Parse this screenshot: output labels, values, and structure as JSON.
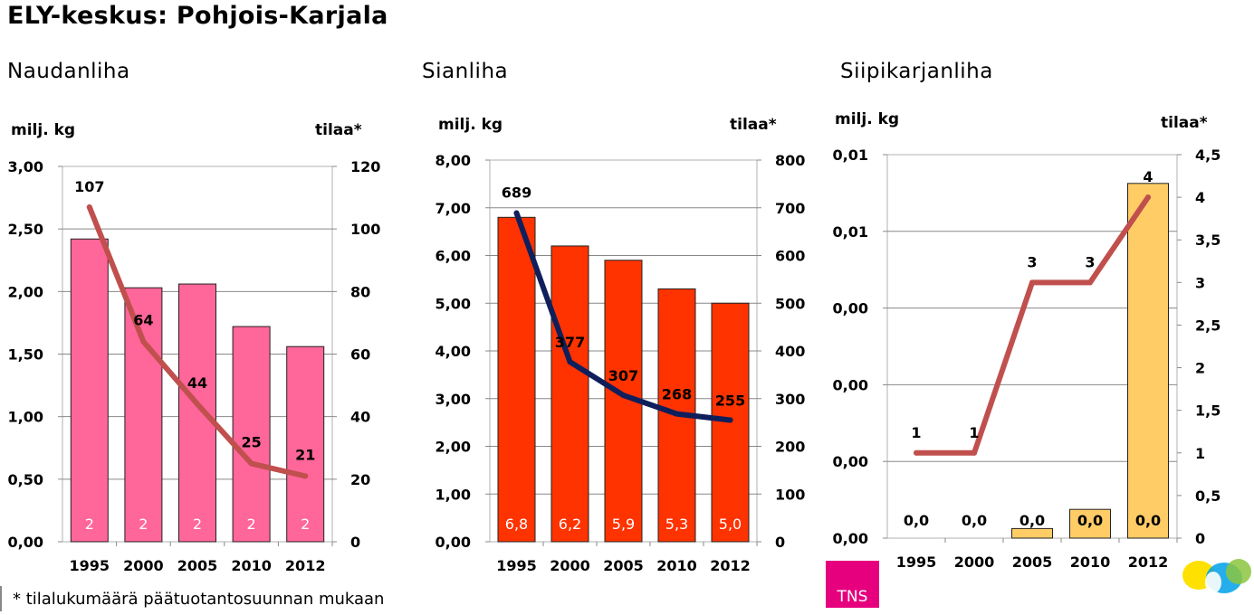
{
  "title": "ELY-keskus: Pohjois-Karjala",
  "footnote": "* tilalukumäärä päätuotantosuunnan mukaan",
  "tns_logo": "TNS",
  "chart_data": [
    {
      "type": "bar",
      "title": "Naudanliha",
      "ylabel": "milj. kg",
      "y2label": "tilaa*",
      "categories": [
        "1995",
        "2000",
        "2005",
        "2010",
        "2012"
      ],
      "ylim": [
        0,
        3
      ],
      "yticks": [
        "0,00",
        "0,50",
        "1,00",
        "1,50",
        "2,00",
        "2,50",
        "3,00"
      ],
      "y2lim": [
        0,
        120
      ],
      "y2ticks": [
        "0",
        "20",
        "40",
        "60",
        "80",
        "100",
        "120"
      ],
      "bar_values": [
        2.42,
        2.03,
        2.06,
        1.72,
        1.56
      ],
      "bar_labels": [
        "2",
        "2",
        "2",
        "2",
        "2"
      ],
      "line_values": [
        107,
        64,
        44,
        25,
        21
      ],
      "line_labels": [
        "107",
        "64",
        "44",
        "25",
        "21"
      ],
      "bar_color": "#ff6699",
      "line_color": "#c0504d",
      "grid": true
    },
    {
      "type": "bar",
      "title": "Sianliha",
      "ylabel": "milj. kg",
      "y2label": "tilaa*",
      "categories": [
        "1995",
        "2000",
        "2005",
        "2010",
        "2012"
      ],
      "ylim": [
        0,
        8
      ],
      "yticks": [
        "0,00",
        "1,00",
        "2,00",
        "3,00",
        "4,00",
        "5,00",
        "6,00",
        "7,00",
        "8,00"
      ],
      "y2lim": [
        0,
        800
      ],
      "y2ticks": [
        "0",
        "100",
        "200",
        "300",
        "400",
        "500",
        "600",
        "700",
        "800"
      ],
      "bar_values": [
        6.8,
        6.2,
        5.9,
        5.3,
        5.0
      ],
      "bar_labels": [
        "6,8",
        "6,2",
        "5,9",
        "5,3",
        "5,0"
      ],
      "line_values": [
        689,
        377,
        307,
        268,
        255
      ],
      "line_labels": [
        "689",
        "377",
        "307",
        "268",
        "255"
      ],
      "bar_color": "#ff3300",
      "line_color": "#0f1f5c",
      "grid": true
    },
    {
      "type": "bar",
      "title": "Siipikarjanliha",
      "ylabel": "milj. kg",
      "y2label": "tilaa*",
      "categories": [
        "1995",
        "2000",
        "2005",
        "2010",
        "2012"
      ],
      "ylim": [
        0,
        0.012
      ],
      "yticks": [
        "0,00",
        "0,00",
        "0,00",
        "0,00",
        "0,01",
        "0,01"
      ],
      "y2lim": [
        0,
        4.5
      ],
      "y2ticks": [
        "0",
        "0,5",
        "1",
        "1,5",
        "2",
        "2,5",
        "3",
        "3,5",
        "4",
        "4,5"
      ],
      "bar_values": [
        0,
        0,
        0.0003,
        0.0009,
        0.0111
      ],
      "bar_labels": [
        "0,0",
        "0,0",
        "0,0",
        "0,0",
        "0,0"
      ],
      "line_values": [
        1,
        1,
        3,
        3,
        4
      ],
      "line_labels": [
        "1",
        "1",
        "3",
        "3",
        "4"
      ],
      "bar_color": "#ffcc66",
      "line_color": "#c0504d",
      "grid": true
    }
  ]
}
